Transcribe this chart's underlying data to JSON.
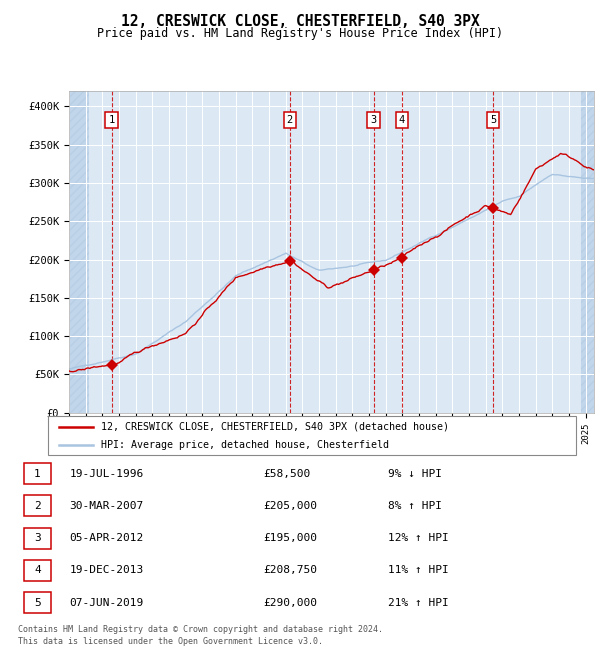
{
  "title": "12, CRESWICK CLOSE, CHESTERFIELD, S40 3PX",
  "subtitle": "Price paid vs. HM Land Registry's House Price Index (HPI)",
  "legend_line1": "12, CRESWICK CLOSE, CHESTERFIELD, S40 3PX (detached house)",
  "legend_line2": "HPI: Average price, detached house, Chesterfield",
  "footer1": "Contains HM Land Registry data © Crown copyright and database right 2024.",
  "footer2": "This data is licensed under the Open Government Licence v3.0.",
  "transactions": [
    {
      "num": 1,
      "date": "19-JUL-1996",
      "price": 58500,
      "pct": "9%",
      "dir": "↓",
      "year": 1996.55
    },
    {
      "num": 2,
      "date": "30-MAR-2007",
      "price": 205000,
      "pct": "8%",
      "dir": "↑",
      "year": 2007.25
    },
    {
      "num": 3,
      "date": "05-APR-2012",
      "price": 195000,
      "pct": "12%",
      "dir": "↑",
      "year": 2012.27
    },
    {
      "num": 4,
      "date": "19-DEC-2013",
      "price": 208750,
      "pct": "11%",
      "dir": "↑",
      "year": 2013.97
    },
    {
      "num": 5,
      "date": "07-JUN-2019",
      "price": 290000,
      "pct": "21%",
      "dir": "↑",
      "year": 2019.44
    }
  ],
  "hpi_color": "#a8c4e0",
  "price_color": "#cc0000",
  "marker_color": "#cc0000",
  "bg_color": "#dce9f5",
  "grid_color": "#ffffff",
  "vline_color": "#cc0000",
  "ylim": [
    0,
    420000
  ],
  "xlim_start": 1994.0,
  "xlim_end": 2025.5,
  "yticks": [
    0,
    50000,
    100000,
    150000,
    200000,
    250000,
    300000,
    350000,
    400000
  ],
  "ytick_labels": [
    "£0",
    "£50K",
    "£100K",
    "£150K",
    "£200K",
    "£250K",
    "£300K",
    "£350K",
    "£400K"
  ],
  "hatch_color": "#c8d8e8"
}
